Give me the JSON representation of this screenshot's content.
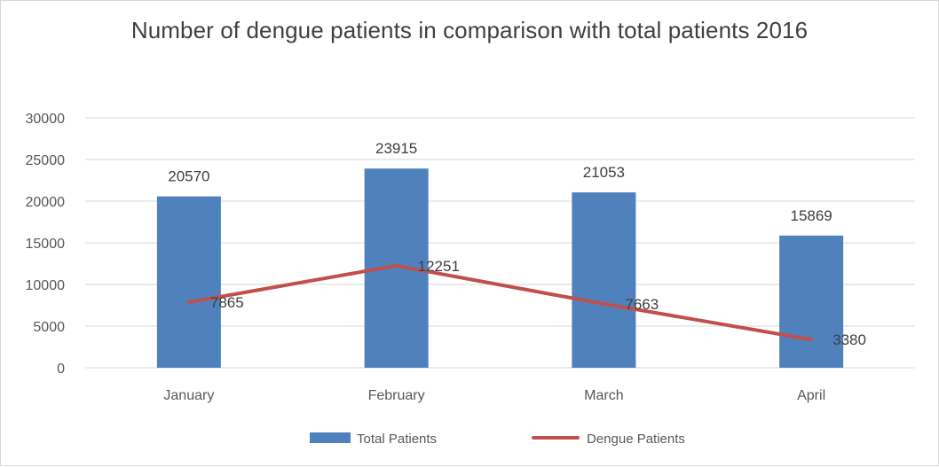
{
  "chart_data": {
    "type": "bar",
    "title": "Number of dengue patients in comparison with total patients 2016",
    "categories": [
      "January",
      "February",
      "March",
      "April"
    ],
    "series": [
      {
        "name": "Total Patients",
        "kind": "bar",
        "color": "#4f81bd",
        "values": [
          20570,
          23915,
          21053,
          15869
        ],
        "labels": [
          "20570",
          "23915",
          "21053",
          "15869"
        ]
      },
      {
        "name": "Dengue Patients",
        "kind": "line",
        "color": "#c0504d",
        "values": [
          7865,
          12251,
          7663,
          3380
        ],
        "labels": [
          "7865",
          "12251",
          "7663",
          "3380"
        ]
      }
    ],
    "ylim": [
      0,
      30000
    ],
    "yticks": [
      0,
      5000,
      10000,
      15000,
      20000,
      25000,
      30000
    ],
    "ytick_labels": [
      "0",
      "5000",
      "10000",
      "15000",
      "20000",
      "25000",
      "30000"
    ],
    "grid": true,
    "legend": "bottom",
    "gridline_color": "#d9d9d9",
    "text_color": "#595959"
  }
}
